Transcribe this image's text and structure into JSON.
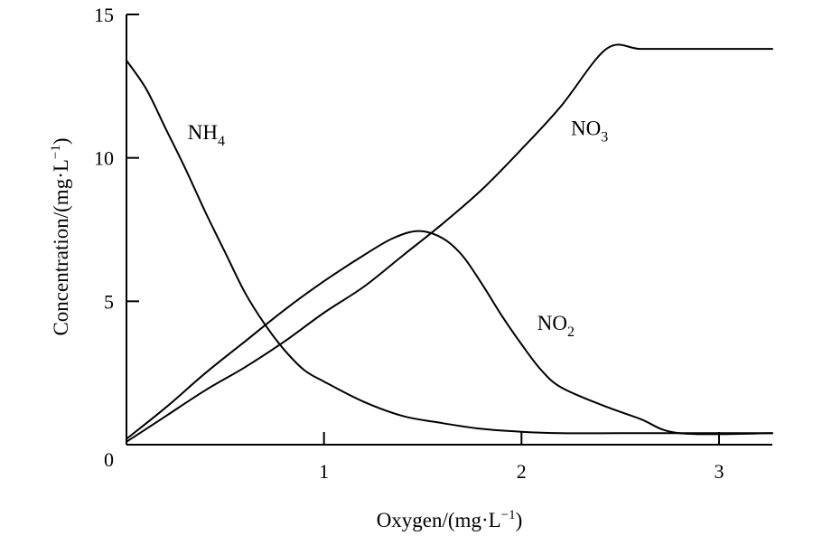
{
  "chart_data": {
    "type": "line",
    "xlabel": {
      "main": "Oxygen/(mg·L",
      "sup": "−1",
      "end": ")"
    },
    "ylabel": {
      "main": "Concentration/(mg·L",
      "sup": "−1",
      "end": ")"
    },
    "xlim": [
      0,
      3.27
    ],
    "ylim": [
      0,
      15
    ],
    "x_ticks": [
      {
        "value": 1,
        "label": "1"
      },
      {
        "value": 2,
        "label": "2"
      },
      {
        "value": 3,
        "label": "3"
      }
    ],
    "y_ticks": [
      {
        "value": 0,
        "label": "0"
      },
      {
        "value": 5,
        "label": "5"
      },
      {
        "value": 10,
        "label": "10"
      },
      {
        "value": 15,
        "label": "15"
      }
    ],
    "grid": false,
    "series": [
      {
        "name": "NH4",
        "label_main": "NH",
        "label_sub": "4",
        "label_x": 0.31,
        "label_y": 10.65,
        "x": [
          0,
          0.1,
          0.2,
          0.3,
          0.4,
          0.5,
          0.6,
          0.7,
          0.8,
          0.9,
          1.0,
          1.2,
          1.4,
          1.6,
          1.8,
          2.0,
          2.2,
          2.5,
          2.8,
          3.27
        ],
        "y": [
          13.4,
          12.4,
          11.0,
          9.6,
          8.1,
          6.7,
          5.3,
          4.2,
          3.3,
          2.6,
          2.2,
          1.5,
          1.0,
          0.75,
          0.55,
          0.45,
          0.4,
          0.4,
          0.4,
          0.4
        ]
      },
      {
        "name": "NO3",
        "label_main": "NO",
        "label_sub": "3",
        "label_x": 2.25,
        "label_y": 10.8,
        "x": [
          0,
          0.2,
          0.4,
          0.6,
          0.8,
          1.0,
          1.2,
          1.4,
          1.6,
          1.8,
          2.0,
          2.2,
          2.43,
          2.6,
          2.8,
          3.0,
          3.27
        ],
        "y": [
          0.1,
          1.0,
          1.9,
          2.7,
          3.6,
          4.6,
          5.5,
          6.6,
          7.7,
          8.9,
          10.3,
          11.8,
          13.8,
          13.8,
          13.8,
          13.8,
          13.8
        ]
      },
      {
        "name": "NO2",
        "label_main": "NO",
        "label_sub": "2",
        "label_x": 2.08,
        "label_y": 4.0,
        "x": [
          0,
          0.2,
          0.4,
          0.6,
          0.8,
          1.0,
          1.2,
          1.35,
          1.48,
          1.6,
          1.7,
          1.8,
          1.9,
          2.0,
          2.1,
          2.2,
          2.4,
          2.6,
          2.8,
          3.27
        ],
        "y": [
          0.2,
          1.3,
          2.5,
          3.6,
          4.7,
          5.7,
          6.6,
          7.2,
          7.45,
          7.2,
          6.6,
          5.6,
          4.5,
          3.5,
          2.6,
          2.0,
          1.4,
          0.9,
          0.4,
          0.4
        ]
      }
    ]
  }
}
